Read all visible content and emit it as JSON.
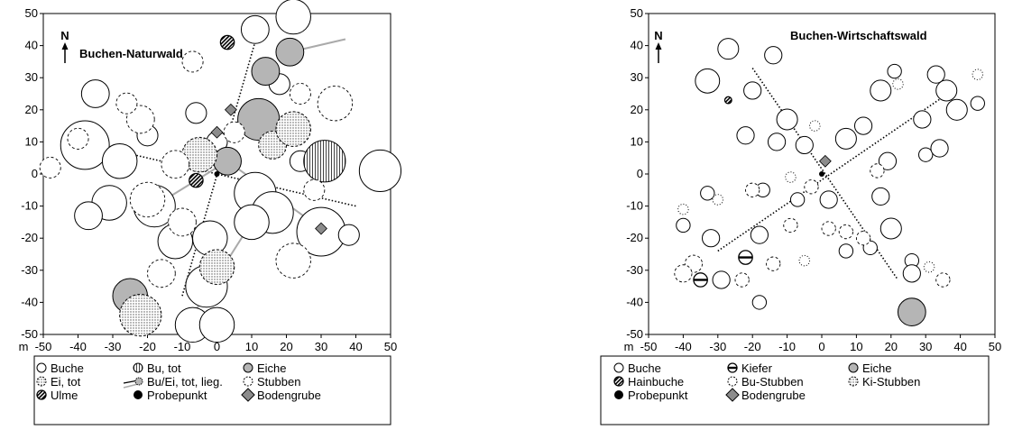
{
  "chart_data": [
    {
      "type": "scatter",
      "title": "Buchen-Naturwald",
      "north_label": "N",
      "x_unit": "m",
      "xlim": [
        -50,
        50
      ],
      "ylim": [
        -50,
        50
      ],
      "xticks": [
        -50,
        -40,
        -30,
        -20,
        -10,
        0,
        10,
        20,
        30,
        40,
        50
      ],
      "yticks": [
        50,
        40,
        30,
        20,
        10,
        0,
        -10,
        -20,
        -30,
        -40,
        -50
      ],
      "legend": {
        "placement": "bottom",
        "items": [
          {
            "label": "Buche",
            "symbol": "open-circle"
          },
          {
            "label": "Bu, tot",
            "symbol": "half-dotted-circle"
          },
          {
            "label": "Eiche",
            "symbol": "grey-circle"
          },
          {
            "label": "Ei, tot",
            "symbol": "dotted-circle"
          },
          {
            "label": "Bu/Ei, tot, lieg.",
            "symbol": "lying-stem"
          },
          {
            "label": "Stubben",
            "symbol": "dashed-circle"
          },
          {
            "label": "Ulme",
            "symbol": "hatched-circle"
          },
          {
            "label": "Probepunkt",
            "symbol": "filled-dot"
          },
          {
            "label": "Bodengrube",
            "symbol": "grey-diamond"
          }
        ]
      },
      "transects": [
        {
          "x1": -40,
          "y1": 10,
          "x2": 40,
          "y2": -10
        },
        {
          "x1": -10,
          "y1": -38,
          "x2": 12,
          "y2": 45
        }
      ],
      "points": [
        {
          "type": "buche",
          "x": -38,
          "y": 9,
          "d": 7
        },
        {
          "type": "buche",
          "x": -28,
          "y": 4,
          "d": 5
        },
        {
          "type": "buche",
          "x": -31,
          "y": -9,
          "d": 5
        },
        {
          "type": "buche",
          "x": -37,
          "y": -13,
          "d": 4
        },
        {
          "type": "buche",
          "x": -35,
          "y": 25,
          "d": 4
        },
        {
          "type": "buche",
          "x": -18,
          "y": -10,
          "d": 6
        },
        {
          "type": "buche",
          "x": -12,
          "y": -21,
          "d": 5
        },
        {
          "type": "buche",
          "x": -2,
          "y": -20,
          "d": 5
        },
        {
          "type": "buche",
          "x": -3,
          "y": -35,
          "d": 6
        },
        {
          "type": "buche",
          "x": -7,
          "y": -47,
          "d": 5
        },
        {
          "type": "buche",
          "x": 0,
          "y": -47,
          "d": 5
        },
        {
          "type": "buche",
          "x": 11,
          "y": -6,
          "d": 6
        },
        {
          "type": "buche",
          "x": 16,
          "y": -12,
          "d": 6
        },
        {
          "type": "buche",
          "x": 10,
          "y": -15,
          "d": 5
        },
        {
          "type": "buche",
          "x": 30,
          "y": -18,
          "d": 7
        },
        {
          "type": "buche",
          "x": 47,
          "y": 1,
          "d": 6
        },
        {
          "type": "buche",
          "x": 22,
          "y": 49,
          "d": 5
        },
        {
          "type": "buche",
          "x": 11,
          "y": 45,
          "d": 4
        },
        {
          "type": "buche",
          "x": -6,
          "y": 19,
          "d": 3
        },
        {
          "type": "buche",
          "x": 0,
          "y": 10,
          "d": 3
        },
        {
          "type": "buche",
          "x": 24,
          "y": 4,
          "d": 3
        },
        {
          "type": "buche",
          "x": 18,
          "y": 28,
          "d": 3
        },
        {
          "type": "buche",
          "x": -20,
          "y": 12,
          "d": 3
        },
        {
          "type": "buche",
          "x": 38,
          "y": -19,
          "d": 3
        },
        {
          "type": "buche",
          "x": -25,
          "y": -38,
          "d": 3
        },
        {
          "type": "eiche",
          "x": 12,
          "y": 17,
          "d": 6
        },
        {
          "type": "eiche",
          "x": 14,
          "y": 32,
          "d": 4
        },
        {
          "type": "eiche",
          "x": 21,
          "y": 38,
          "d": 4
        },
        {
          "type": "eiche",
          "x": -25,
          "y": -38,
          "d": 5
        },
        {
          "type": "eiche",
          "x": 3,
          "y": 4,
          "d": 4
        },
        {
          "type": "ei_tot",
          "x": -5,
          "y": 6,
          "d": 5
        },
        {
          "type": "ei_tot",
          "x": 16,
          "y": 9,
          "d": 4
        },
        {
          "type": "ei_tot",
          "x": 22,
          "y": 14,
          "d": 5
        },
        {
          "type": "ei_tot",
          "x": 0,
          "y": -29,
          "d": 5
        },
        {
          "type": "ei_tot",
          "x": -22,
          "y": -44,
          "d": 6
        },
        {
          "type": "bu_tot",
          "x": 31,
          "y": 4,
          "d": 6
        },
        {
          "type": "stubben",
          "x": -20,
          "y": -8,
          "d": 5
        },
        {
          "type": "stubben",
          "x": -10,
          "y": -15,
          "d": 4
        },
        {
          "type": "stubben",
          "x": -12,
          "y": 3,
          "d": 4
        },
        {
          "type": "stubben",
          "x": -22,
          "y": 17,
          "d": 4
        },
        {
          "type": "stubben",
          "x": -26,
          "y": 22,
          "d": 3
        },
        {
          "type": "stubben",
          "x": -7,
          "y": 35,
          "d": 3
        },
        {
          "type": "stubben",
          "x": 24,
          "y": 25,
          "d": 3
        },
        {
          "type": "stubben",
          "x": 34,
          "y": 22,
          "d": 5
        },
        {
          "type": "stubben",
          "x": 28,
          "y": -5,
          "d": 3
        },
        {
          "type": "stubben",
          "x": 22,
          "y": -27,
          "d": 5
        },
        {
          "type": "stubben",
          "x": -16,
          "y": -31,
          "d": 4
        },
        {
          "type": "stubben",
          "x": -48,
          "y": 2,
          "d": 3
        },
        {
          "type": "stubben",
          "x": -40,
          "y": 11,
          "d": 3
        },
        {
          "type": "stubben",
          "x": 5,
          "y": 13,
          "d": 3
        },
        {
          "type": "ulme",
          "x": 3,
          "y": 41,
          "d": 2
        },
        {
          "type": "ulme",
          "x": -6,
          "y": -2,
          "d": 2
        },
        {
          "type": "probe",
          "x": 0,
          "y": 0,
          "d": 1
        },
        {
          "type": "grube",
          "x": 4,
          "y": 20,
          "d": 2
        },
        {
          "type": "grube",
          "x": 0,
          "y": 13,
          "d": 2
        },
        {
          "type": "grube",
          "x": 30,
          "y": -17,
          "d": 1.5
        }
      ],
      "lying": [
        {
          "x1": 3,
          "y1": 4,
          "x2": 30,
          "y2": -17
        },
        {
          "x1": -18,
          "y1": -10,
          "x2": 3,
          "y2": 4
        },
        {
          "x1": 21,
          "y1": 38,
          "x2": 37,
          "y2": 42
        },
        {
          "x1": -7,
          "y1": -44,
          "x2": 10,
          "y2": -15
        }
      ]
    },
    {
      "type": "scatter",
      "title": "Buchen-Wirtschaftswald",
      "north_label": "N",
      "x_unit": "m",
      "xlim": [
        -50,
        50
      ],
      "ylim": [
        -50,
        50
      ],
      "xticks": [
        -50,
        -40,
        -30,
        -20,
        -10,
        0,
        10,
        20,
        30,
        40,
        50
      ],
      "yticks": [
        50,
        40,
        30,
        20,
        10,
        0,
        -10,
        -20,
        -30,
        -40,
        -50
      ],
      "legend": {
        "placement": "bottom",
        "items": [
          {
            "label": "Buche",
            "symbol": "open-circle"
          },
          {
            "label": "Kiefer",
            "symbol": "barred-circle"
          },
          {
            "label": "Eiche",
            "symbol": "grey-circle"
          },
          {
            "label": "Hainbuche",
            "symbol": "hatched-circle"
          },
          {
            "label": "Bu-Stubben",
            "symbol": "dashed-circle"
          },
          {
            "label": "Ki-Stubben",
            "symbol": "dotted-circle"
          },
          {
            "label": "Probepunkt",
            "symbol": "filled-dot"
          },
          {
            "label": "Bodengrube",
            "symbol": "grey-diamond"
          }
        ]
      },
      "transects": [
        {
          "x1": -30,
          "y1": -24,
          "x2": 35,
          "y2": 24
        },
        {
          "x1": -20,
          "y1": 33,
          "x2": 22,
          "y2": -33
        }
      ],
      "points": [
        {
          "type": "buche",
          "x": -27,
          "y": 39,
          "d": 3
        },
        {
          "type": "buche",
          "x": -33,
          "y": 29,
          "d": 3.5
        },
        {
          "type": "buche",
          "x": -20,
          "y": 26,
          "d": 2.5
        },
        {
          "type": "buche",
          "x": -10,
          "y": 17,
          "d": 3
        },
        {
          "type": "buche",
          "x": -13,
          "y": 10,
          "d": 2.5
        },
        {
          "type": "buche",
          "x": -22,
          "y": 12,
          "d": 2.5
        },
        {
          "type": "buche",
          "x": -5,
          "y": 9,
          "d": 2.5
        },
        {
          "type": "buche",
          "x": 7,
          "y": 11,
          "d": 3
        },
        {
          "type": "buche",
          "x": 12,
          "y": 15,
          "d": 2.5
        },
        {
          "type": "buche",
          "x": 17,
          "y": 26,
          "d": 3
        },
        {
          "type": "buche",
          "x": 21,
          "y": 32,
          "d": 2
        },
        {
          "type": "buche",
          "x": 33,
          "y": 31,
          "d": 2.5
        },
        {
          "type": "buche",
          "x": 36,
          "y": 26,
          "d": 3
        },
        {
          "type": "buche",
          "x": 39,
          "y": 20,
          "d": 3
        },
        {
          "type": "buche",
          "x": 29,
          "y": 17,
          "d": 2.5
        },
        {
          "type": "buche",
          "x": 30,
          "y": 6,
          "d": 2
        },
        {
          "type": "buche",
          "x": 34,
          "y": 8,
          "d": 2.5
        },
        {
          "type": "buche",
          "x": 19,
          "y": 4,
          "d": 2.5
        },
        {
          "type": "buche",
          "x": 2,
          "y": -8,
          "d": 2.5
        },
        {
          "type": "buche",
          "x": -18,
          "y": -19,
          "d": 2.5
        },
        {
          "type": "buche",
          "x": -32,
          "y": -20,
          "d": 2.5
        },
        {
          "type": "buche",
          "x": -40,
          "y": -16,
          "d": 2
        },
        {
          "type": "buche",
          "x": -33,
          "y": -6,
          "d": 2
        },
        {
          "type": "buche",
          "x": -17,
          "y": -5,
          "d": 2
        },
        {
          "type": "buche",
          "x": 17,
          "y": -7,
          "d": 2.5
        },
        {
          "type": "buche",
          "x": 20,
          "y": -17,
          "d": 3
        },
        {
          "type": "buche",
          "x": 14,
          "y": -23,
          "d": 2
        },
        {
          "type": "buche",
          "x": 26,
          "y": -27,
          "d": 2
        },
        {
          "type": "buche",
          "x": 26,
          "y": -31,
          "d": 2.5
        },
        {
          "type": "buche",
          "x": -29,
          "y": -33,
          "d": 2.5
        },
        {
          "type": "buche",
          "x": -18,
          "y": -40,
          "d": 2
        },
        {
          "type": "buche",
          "x": 7,
          "y": -24,
          "d": 2
        },
        {
          "type": "buche",
          "x": -7,
          "y": -8,
          "d": 2
        },
        {
          "type": "buche",
          "x": -14,
          "y": 37,
          "d": 2.5
        },
        {
          "type": "buche",
          "x": 45,
          "y": 22,
          "d": 2
        },
        {
          "type": "eiche",
          "x": 26,
          "y": -43,
          "d": 4
        },
        {
          "type": "kiefer",
          "x": -35,
          "y": -33,
          "d": 2
        },
        {
          "type": "kiefer",
          "x": -22,
          "y": -26,
          "d": 2
        },
        {
          "type": "hainbuche",
          "x": -27,
          "y": 23,
          "d": 1
        },
        {
          "type": "bu_stubben",
          "x": -37,
          "y": -28,
          "d": 2.5
        },
        {
          "type": "bu_stubben",
          "x": -40,
          "y": -31,
          "d": 2.5
        },
        {
          "type": "bu_stubben",
          "x": -14,
          "y": -28,
          "d": 2
        },
        {
          "type": "bu_stubben",
          "x": -3,
          "y": -4,
          "d": 2
        },
        {
          "type": "bu_stubben",
          "x": -9,
          "y": -16,
          "d": 2
        },
        {
          "type": "bu_stubben",
          "x": 12,
          "y": -20,
          "d": 2
        },
        {
          "type": "bu_stubben",
          "x": 7,
          "y": -18,
          "d": 2
        },
        {
          "type": "bu_stubben",
          "x": 2,
          "y": -17,
          "d": 2
        },
        {
          "type": "bu_stubben",
          "x": -23,
          "y": -33,
          "d": 2
        },
        {
          "type": "bu_stubben",
          "x": 35,
          "y": -33,
          "d": 2
        },
        {
          "type": "bu_stubben",
          "x": -20,
          "y": -5,
          "d": 2
        },
        {
          "type": "bu_stubben",
          "x": 16,
          "y": 1,
          "d": 2
        },
        {
          "type": "ki_stubben",
          "x": -30,
          "y": -8,
          "d": 1.5
        },
        {
          "type": "ki_stubben",
          "x": -40,
          "y": -11,
          "d": 1.5
        },
        {
          "type": "ki_stubben",
          "x": 22,
          "y": 28,
          "d": 1.5
        },
        {
          "type": "ki_stubben",
          "x": -2,
          "y": 15,
          "d": 1.5
        },
        {
          "type": "ki_stubben",
          "x": 31,
          "y": -29,
          "d": 1.5
        },
        {
          "type": "ki_stubben",
          "x": 45,
          "y": 31,
          "d": 1.5
        },
        {
          "type": "ki_stubben",
          "x": -5,
          "y": -27,
          "d": 1.5
        },
        {
          "type": "ki_stubben",
          "x": -9,
          "y": -1,
          "d": 1.5
        },
        {
          "type": "probe",
          "x": 0,
          "y": 0,
          "d": 1
        },
        {
          "type": "grube",
          "x": 1,
          "y": 4,
          "d": 2
        }
      ],
      "lying": []
    }
  ]
}
